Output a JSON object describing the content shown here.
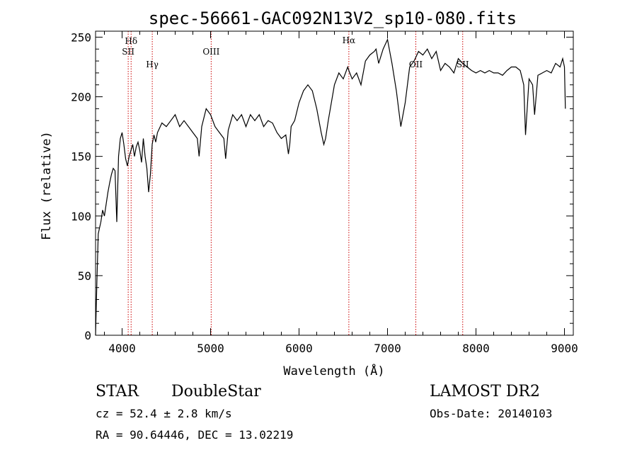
{
  "chart_data": {
    "type": "line",
    "title": "spec-56661-GAC092N13V2_sp10-080.fits",
    "xlabel": "Wavelength (Å)",
    "ylabel": "Flux (relative)",
    "xlim": [
      3700,
      9100
    ],
    "ylim": [
      0,
      255
    ],
    "x_ticks": [
      4000,
      5000,
      6000,
      7000,
      8000,
      9000
    ],
    "y_ticks": [
      0,
      50,
      100,
      150,
      200,
      250
    ],
    "grid": false,
    "line_color": "#000000",
    "marker_color": "#cc0000",
    "lines": [
      {
        "label": "Hδ",
        "x": 4102
      },
      {
        "label": "SII",
        "x": 4069
      },
      {
        "label": "Hγ",
        "x": 4341
      },
      {
        "label": "OIII",
        "x": 5007
      },
      {
        "label": "Hα",
        "x": 6563
      },
      {
        "label": "OII",
        "x": 7320
      },
      {
        "label": "SII",
        "x": 7850
      }
    ],
    "series": [
      {
        "x": [
          3700,
          3715,
          3730,
          3745,
          3760,
          3780,
          3800,
          3820,
          3840,
          3860,
          3880,
          3900,
          3920,
          3940,
          3960,
          3980,
          4000,
          4020,
          4040,
          4060,
          4080,
          4100,
          4120,
          4140,
          4160,
          4180,
          4200,
          4220,
          4240,
          4260,
          4280,
          4300,
          4320,
          4340,
          4360,
          4380,
          4400,
          4450,
          4500,
          4550,
          4600,
          4650,
          4700,
          4750,
          4800,
          4850,
          4870,
          4900,
          4950,
          5000,
          5050,
          5100,
          5150,
          5170,
          5200,
          5250,
          5300,
          5350,
          5400,
          5450,
          5500,
          5550,
          5600,
          5650,
          5700,
          5750,
          5800,
          5850,
          5880,
          5895,
          5910,
          5950,
          6000,
          6050,
          6100,
          6150,
          6200,
          6250,
          6280,
          6300,
          6330,
          6400,
          6450,
          6500,
          6550,
          6563,
          6600,
          6650,
          6700,
          6750,
          6800,
          6850,
          6870,
          6900,
          6950,
          7000,
          7050,
          7100,
          7150,
          7200,
          7250,
          7300,
          7350,
          7400,
          7450,
          7500,
          7550,
          7600,
          7650,
          7700,
          7750,
          7800,
          7850,
          7900,
          7950,
          8000,
          8050,
          8100,
          8150,
          8200,
          8250,
          8300,
          8350,
          8400,
          8450,
          8500,
          8540,
          8560,
          8600,
          8640,
          8662,
          8700,
          8750,
          8800,
          8850,
          8900,
          8950,
          8980,
          9000,
          9010
        ],
        "y": [
          0,
          45,
          85,
          90,
          95,
          105,
          100,
          110,
          120,
          128,
          135,
          140,
          138,
          95,
          150,
          165,
          170,
          160,
          148,
          142,
          150,
          155,
          160,
          150,
          158,
          162,
          155,
          145,
          165,
          150,
          140,
          120,
          135,
          160,
          168,
          162,
          170,
          178,
          175,
          180,
          185,
          175,
          180,
          175,
          170,
          165,
          150,
          175,
          190,
          185,
          175,
          170,
          165,
          148,
          172,
          185,
          180,
          185,
          175,
          185,
          180,
          185,
          175,
          180,
          178,
          170,
          165,
          168,
          152,
          160,
          175,
          180,
          195,
          205,
          210,
          205,
          190,
          170,
          160,
          165,
          180,
          210,
          220,
          215,
          225,
          222,
          215,
          220,
          210,
          230,
          235,
          238,
          240,
          228,
          240,
          248,
          228,
          205,
          175,
          195,
          225,
          230,
          238,
          235,
          240,
          232,
          238,
          222,
          228,
          225,
          220,
          232,
          228,
          225,
          222,
          220,
          222,
          220,
          222,
          220,
          220,
          218,
          222,
          225,
          225,
          222,
          210,
          168,
          215,
          210,
          185,
          218,
          220,
          222,
          220,
          228,
          225,
          232,
          225,
          190
        ]
      }
    ]
  },
  "footer": {
    "object_type": "STAR",
    "subclass": "DoubleStar",
    "survey": "LAMOST DR2",
    "cz": "cz = 52.4 ± 2.8 km/s",
    "obs_date": "Obs-Date: 20140103",
    "coords": "RA =  90.64446, DEC =  13.02219"
  }
}
